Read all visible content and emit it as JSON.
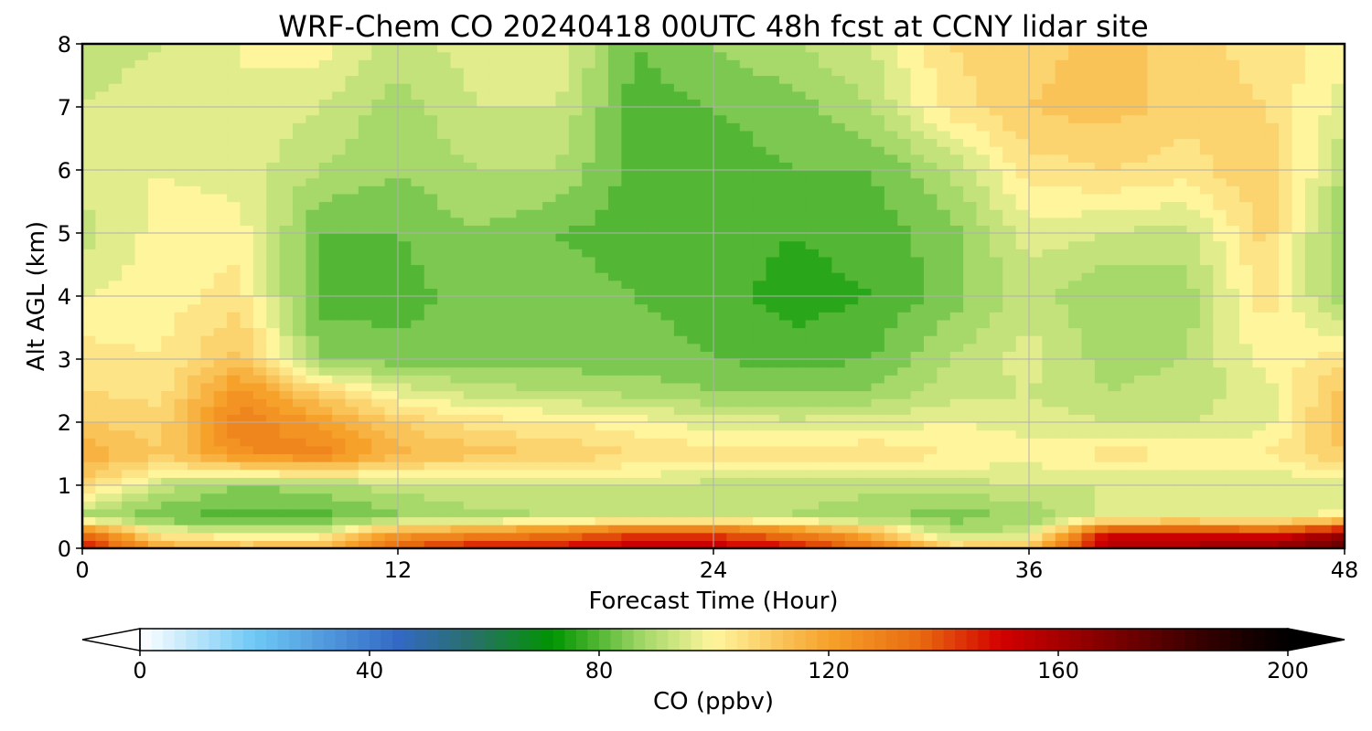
{
  "chart_data": {
    "type": "heatmap",
    "title": "WRF-Chem CO  20240418 00UTC 48h fcst at CCNY lidar site",
    "xlabel": "Forecast Time (Hour)",
    "ylabel": "Alt AGL (km)",
    "xlim": [
      0,
      48
    ],
    "ylim": [
      0,
      8
    ],
    "x_ticks": [
      "0",
      "12",
      "24",
      "36",
      "48"
    ],
    "y_ticks": [
      "0",
      "1",
      "2",
      "3",
      "4",
      "5",
      "6",
      "7",
      "8"
    ],
    "grid": true,
    "x": [
      0,
      3,
      6,
      9,
      12,
      15,
      18,
      21,
      24,
      27,
      30,
      33,
      36,
      39,
      42,
      45,
      48
    ],
    "y": [
      0,
      0.25,
      0.5,
      1,
      1.5,
      2,
      2.5,
      3,
      4,
      5,
      6,
      7,
      8
    ],
    "z": [
      [
        150,
        120,
        115,
        115,
        140,
        150,
        150,
        155,
        155,
        150,
        135,
        110,
        115,
        160,
        160,
        165,
        175
      ],
      [
        135,
        100,
        95,
        95,
        120,
        125,
        130,
        140,
        140,
        130,
        115,
        90,
        92,
        150,
        150,
        145,
        160
      ],
      [
        88,
        82,
        80,
        80,
        85,
        88,
        90,
        92,
        92,
        90,
        86,
        84,
        86,
        96,
        97,
        95,
        100
      ],
      [
        108,
        92,
        86,
        88,
        92,
        94,
        94,
        94,
        92,
        92,
        92,
        92,
        94,
        94,
        94,
        94,
        95
      ],
      [
        118,
        110,
        125,
        128,
        115,
        112,
        110,
        106,
        104,
        104,
        106,
        102,
        100,
        104,
        102,
        102,
        110
      ],
      [
        110,
        108,
        130,
        122,
        110,
        104,
        102,
        100,
        96,
        95,
        96,
        98,
        96,
        94,
        94,
        96,
        115
      ],
      [
        106,
        104,
        124,
        108,
        96,
        92,
        90,
        88,
        86,
        85,
        86,
        92,
        94,
        90,
        92,
        96,
        112
      ],
      [
        104,
        102,
        112,
        86,
        84,
        84,
        84,
        84,
        82,
        80,
        82,
        90,
        96,
        88,
        90,
        100,
        104
      ],
      [
        98,
        100,
        104,
        80,
        80,
        84,
        84,
        82,
        80,
        76,
        78,
        84,
        92,
        86,
        88,
        104,
        86
      ],
      [
        92,
        100,
        100,
        82,
        82,
        86,
        82,
        80,
        80,
        78,
        80,
        84,
        96,
        94,
        92,
        108,
        84
      ],
      [
        96,
        98,
        96,
        90,
        86,
        90,
        90,
        80,
        80,
        82,
        82,
        90,
        104,
        106,
        104,
        110,
        90
      ],
      [
        94,
        96,
        98,
        94,
        88,
        94,
        94,
        80,
        82,
        84,
        90,
        104,
        110,
        112,
        108,
        106,
        96
      ],
      [
        92,
        94,
        98,
        100,
        92,
        96,
        98,
        82,
        86,
        90,
        94,
        106,
        108,
        112,
        108,
        104,
        100
      ]
    ],
    "colorbar": {
      "label": "CO  (ppbv)",
      "min": 0,
      "max": 200,
      "ticks": [
        "0",
        "40",
        "80",
        "120",
        "160",
        "200"
      ],
      "extend": "both",
      "colormap_stops": [
        {
          "value": 0,
          "color": "#ffffff"
        },
        {
          "value": 20,
          "color": "#6ec8f5"
        },
        {
          "value": 45,
          "color": "#3369c4"
        },
        {
          "value": 58,
          "color": "#287068"
        },
        {
          "value": 72,
          "color": "#009500"
        },
        {
          "value": 88,
          "color": "#a6d96a"
        },
        {
          "value": 100,
          "color": "#fff59d"
        },
        {
          "value": 120,
          "color": "#f6a12a"
        },
        {
          "value": 136,
          "color": "#e86a0f"
        },
        {
          "value": 150,
          "color": "#d40000"
        },
        {
          "value": 166,
          "color": "#8b0000"
        },
        {
          "value": 184,
          "color": "#3a0000"
        },
        {
          "value": 200,
          "color": "#000000"
        }
      ]
    }
  }
}
